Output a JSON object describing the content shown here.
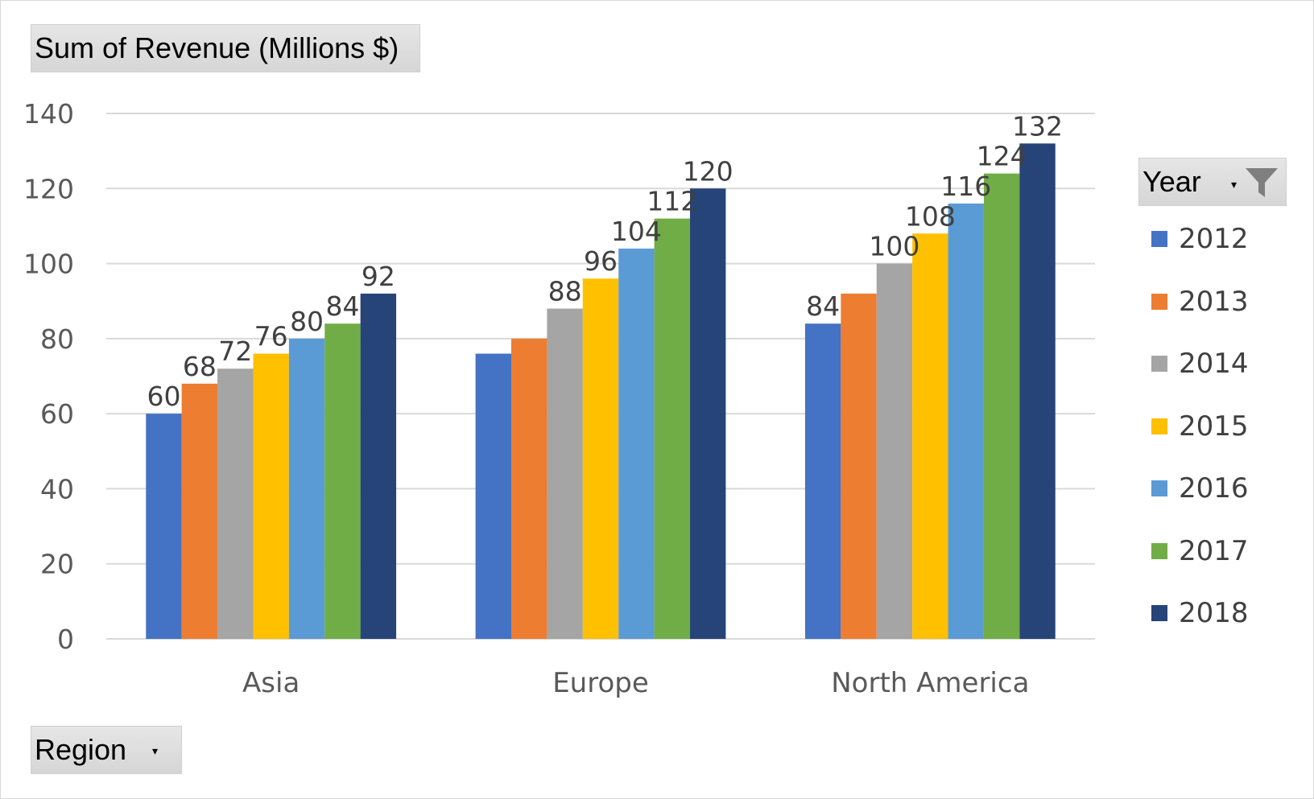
{
  "value_field": {
    "label": "Sum of Revenue (Millions $)"
  },
  "row_field": {
    "label": "Region",
    "dropdown_icon": "dropdown-arrow-icon"
  },
  "legend_field": {
    "label": "Year",
    "dropdown_icon": "dropdown-arrow-icon",
    "filter_icon": "funnel-filter-icon"
  },
  "chart_data": {
    "type": "bar",
    "title": "",
    "xlabel": "",
    "ylabel": "",
    "categories": [
      "Asia",
      "Europe",
      "North America"
    ],
    "ylim": [
      0,
      140
    ],
    "yticks": [
      0,
      20,
      40,
      60,
      80,
      100,
      120,
      140
    ],
    "grid": true,
    "legend": "right",
    "data_labels": true,
    "series": [
      {
        "name": "2012",
        "color": "#4472C4",
        "values": [
          60,
          76,
          84
        ]
      },
      {
        "name": "2013",
        "color": "#ED7D31",
        "values": [
          68,
          80,
          92
        ]
      },
      {
        "name": "2014",
        "color": "#A5A5A5",
        "values": [
          72,
          88,
          100
        ]
      },
      {
        "name": "2015",
        "color": "#FFC000",
        "values": [
          76,
          96,
          108
        ]
      },
      {
        "name": "2016",
        "color": "#5B9BD5",
        "values": [
          80,
          104,
          116
        ]
      },
      {
        "name": "2017",
        "color": "#70AD47",
        "values": [
          84,
          112,
          124
        ]
      },
      {
        "name": "2018",
        "color": "#264478",
        "values": [
          92,
          120,
          132
        ]
      }
    ],
    "hidden_labels": [
      [
        false,
        true,
        false
      ],
      [
        false,
        true,
        true
      ],
      [
        false,
        false,
        false
      ],
      [
        false,
        false,
        false
      ],
      [
        false,
        false,
        false
      ],
      [
        false,
        false,
        false
      ],
      [
        false,
        false,
        false
      ]
    ]
  }
}
